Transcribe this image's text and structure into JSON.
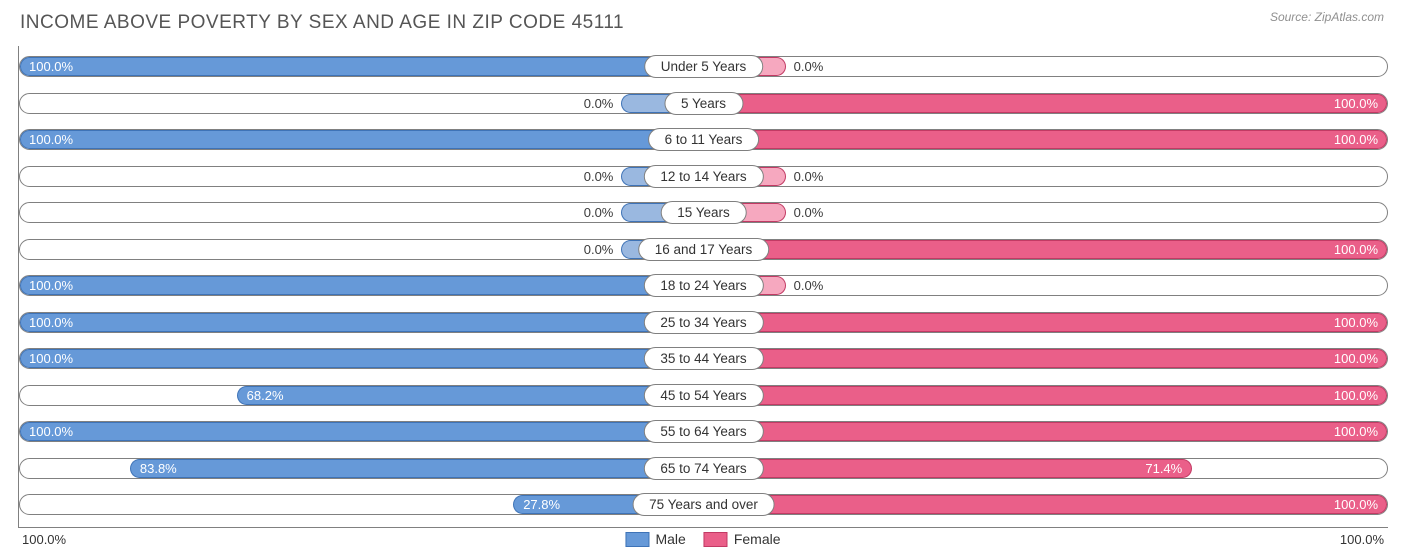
{
  "title": "INCOME ABOVE POVERTY BY SEX AND AGE IN ZIP CODE 45111",
  "source": "Source: ZipAtlas.com",
  "axis": {
    "left": "100.0%",
    "right": "100.0%"
  },
  "legend": {
    "male": "Male",
    "female": "Female"
  },
  "colors": {
    "male_fill": "#6699d8",
    "male_border": "#3e73b7",
    "female_fill": "#ea5f89",
    "female_border": "#c23a64",
    "text_dark": "#333333",
    "text_light": "#ffffff",
    "track_border": "#808080",
    "min_bar_color_male": "#9ab8e0",
    "min_bar_color_female": "#f6a8bf"
  },
  "min_bar_pct": 12,
  "rows": [
    {
      "category": "Under 5 Years",
      "male": 100.0,
      "female": 0.0
    },
    {
      "category": "5 Years",
      "male": 0.0,
      "female": 100.0
    },
    {
      "category": "6 to 11 Years",
      "male": 100.0,
      "female": 100.0
    },
    {
      "category": "12 to 14 Years",
      "male": 0.0,
      "female": 0.0
    },
    {
      "category": "15 Years",
      "male": 0.0,
      "female": 0.0
    },
    {
      "category": "16 and 17 Years",
      "male": 0.0,
      "female": 100.0
    },
    {
      "category": "18 to 24 Years",
      "male": 100.0,
      "female": 0.0
    },
    {
      "category": "25 to 34 Years",
      "male": 100.0,
      "female": 100.0
    },
    {
      "category": "35 to 44 Years",
      "male": 100.0,
      "female": 100.0
    },
    {
      "category": "45 to 54 Years",
      "male": 68.2,
      "female": 100.0
    },
    {
      "category": "55 to 64 Years",
      "male": 100.0,
      "female": 100.0
    },
    {
      "category": "65 to 74 Years",
      "male": 83.8,
      "female": 71.4
    },
    {
      "category": "75 Years and over",
      "male": 27.8,
      "female": 100.0
    }
  ]
}
